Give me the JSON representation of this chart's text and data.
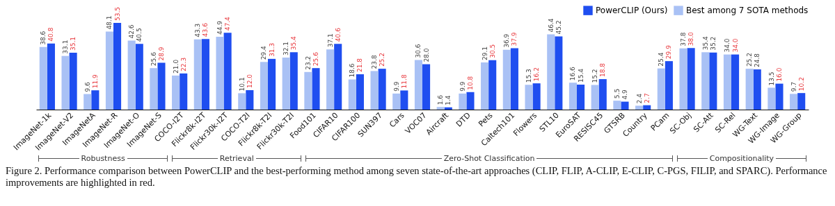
{
  "chart_data": {
    "type": "bar",
    "categories": [
      "ImageNet-1k",
      "ImageNet-V2",
      "ImageNetA",
      "ImageNet-R",
      "ImageNet-O",
      "ImageNet-S",
      "COCO-I2T",
      "Flickr8k-I2T",
      "Flickr30k-I2T",
      "COCO-T2I",
      "Flickr8k-T2I",
      "Flickr30k-T2I",
      "Food101",
      "CIFAR10",
      "CIFAR100",
      "SUN397",
      "Cars",
      "VOC07",
      "Aircraft",
      "DTD",
      "Pets",
      "Caltech101",
      "Flowers",
      "STL10",
      "EuroSAT",
      "RESISC45",
      "GTSRB",
      "Country",
      "PCam",
      "SC-Obj",
      "SC-Att",
      "SC-Rel",
      "WG-Text",
      "WG-Image",
      "WG-Group"
    ],
    "series": [
      {
        "name": "PowerCLIP (Ours)",
        "color": "#1f4ef0",
        "values": [
          40.8,
          35.1,
          11.9,
          53.5,
          40.5,
          28.9,
          22.3,
          43.6,
          47.4,
          12.0,
          31.3,
          35.4,
          25.6,
          40.6,
          21.8,
          25.2,
          11.8,
          28.0,
          1.4,
          10.8,
          30.5,
          37.9,
          16.2,
          45.2,
          15.4,
          18.8,
          4.9,
          2.7,
          29.9,
          38.0,
          35.2,
          34.0,
          24.8,
          16.0,
          10.2
        ],
        "value_labels": [
          "40.8",
          "35.1",
          "11.9",
          "53.5",
          "40.5",
          "28.9",
          "22.3",
          "43.6",
          "47.4",
          "12.0",
          "31.3",
          "35.4",
          "25.6",
          "40.6",
          "21.8",
          "25.2",
          "11.8",
          "28.0",
          "1.4",
          "10.8",
          "30.5",
          "37.9",
          "16.2",
          "45.2",
          "15.4",
          "18.8",
          "4.9",
          "2.7",
          "29.9",
          "38.0",
          "35.2",
          "34.0",
          "24.8",
          "16.0",
          "10.2"
        ]
      },
      {
        "name": "Best among 7 SOTA methods",
        "color": "#a9c1f5",
        "values": [
          38.6,
          33.1,
          9.6,
          48.1,
          42.6,
          25.6,
          21.0,
          43.3,
          44.9,
          10.1,
          29.4,
          32.1,
          23.2,
          37.1,
          18.6,
          23.8,
          9.9,
          30.6,
          1.6,
          9.9,
          29.1,
          36.9,
          15.3,
          46.4,
          16.6,
          15.2,
          5.5,
          2.4,
          25.4,
          37.8,
          35.4,
          34.0,
          25.2,
          13.5,
          9.7
        ],
        "value_labels": [
          "38.6",
          "33.1",
          "9.6",
          "48.1",
          "42.6",
          "25.6",
          "21.0",
          "43.3",
          "44.9",
          "10.1",
          "29.4",
          "32.1",
          "23.2",
          "37.1",
          "18.6",
          "23.8",
          "9.9",
          "30.6",
          "1.6",
          "9.9",
          "29.1",
          "36.9",
          "15.3",
          "46.4",
          "16.6",
          "15.2",
          "5.5",
          "2.4",
          "25.4",
          "37.8",
          "35.4",
          "34.0",
          "25.2",
          "13.5",
          "9.7"
        ]
      }
    ],
    "legend": "top right",
    "annotations": [
      "Robustness",
      "Retrieval",
      "Zero-Shot Classification",
      "Compositionality",
      "Figure 2. Performance comparison between PowerCLIP and the best-performing method among seven state-of-the-art approaches (CLIP, FLIP, A-CLIP, E-CLIP, C-PGS, FILIP, and SPARC). Performance improvements are highlighted in red."
    ]
  }
}
